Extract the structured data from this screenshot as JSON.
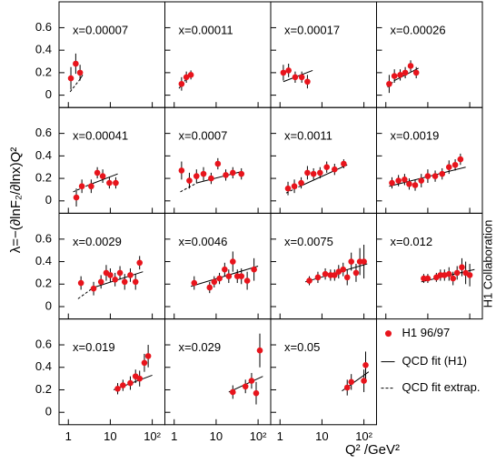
{
  "chart_data": {
    "type": "scatter",
    "y_label": "λ=−(∂lnF₂/∂lnx)Q²",
    "x_label": "Q² /GeV²",
    "side_label": "H1 Collaboration",
    "log_x": true,
    "xlim": [
      0.6,
      200
    ],
    "ylim": [
      -0.11,
      0.83
    ],
    "xticks": [
      1,
      10,
      {
        "value": 100,
        "label": "10²"
      }
    ],
    "yticks": [
      0,
      0.2,
      0.4,
      0.6
    ],
    "marker_color": "#e8141c",
    "legend": {
      "data": "H1 96/97",
      "fit": "QCD fit (H1)",
      "extrap": "QCD fit extrap."
    },
    "panels": [
      {
        "label": "x=0.00007",
        "x": [
          1.15,
          1.5,
          1.9
        ],
        "values": [
          0.15,
          0.28,
          0.2
        ],
        "errors": [
          0.1,
          0.09,
          0.07
        ],
        "extrap": {
          "x": [
            1.1,
            1.8
          ],
          "values": [
            0.03,
            0.13
          ]
        },
        "fit": {
          "x": [
            1.8,
            2.2
          ],
          "values": [
            0.13,
            0.18
          ]
        }
      },
      {
        "label": "x=0.00011",
        "x": [
          1.5,
          1.95,
          2.5
        ],
        "values": [
          0.1,
          0.16,
          0.18
        ],
        "errors": [
          0.06,
          0.05,
          0.04
        ],
        "extrap": {
          "x": [
            1.3,
            1.9
          ],
          "values": [
            0.06,
            0.14
          ]
        },
        "fit": {
          "x": [
            1.9,
            2.6
          ],
          "values": [
            0.14,
            0.2
          ]
        }
      },
      {
        "label": "x=0.00017",
        "x": [
          1.2,
          1.6,
          2.3,
          3.3,
          4.5
        ],
        "values": [
          0.2,
          0.22,
          0.16,
          0.16,
          0.12
        ],
        "errors": [
          0.07,
          0.06,
          0.05,
          0.05,
          0.06
        ],
        "fit": {
          "x": [
            1.2,
            6
          ],
          "values": [
            0.12,
            0.22
          ]
        }
      },
      {
        "label": "x=0.00026",
        "x": [
          1.2,
          1.6,
          2.2,
          2.9,
          3.9,
          5.3
        ],
        "values": [
          0.1,
          0.17,
          0.18,
          0.2,
          0.26,
          0.2
        ],
        "errors": [
          0.08,
          0.06,
          0.05,
          0.05,
          0.05,
          0.05
        ],
        "extrap": {
          "x": [
            1.1,
            1.6
          ],
          "values": [
            0.07,
            0.13
          ]
        },
        "fit": {
          "x": [
            1.6,
            6
          ],
          "values": [
            0.13,
            0.24
          ]
        }
      },
      {
        "label": "x=0.00041",
        "x": [
          1.55,
          2.1,
          3.5,
          4.9,
          6.6,
          9.5,
          13.5
        ],
        "values": [
          0.03,
          0.13,
          0.13,
          0.25,
          0.22,
          0.16,
          0.16
        ],
        "errors": [
          0.08,
          0.06,
          0.06,
          0.05,
          0.06,
          0.05,
          0.05
        ],
        "extrap": {
          "x": [
            1.3,
            3
          ],
          "values": [
            0.08,
            0.14
          ]
        },
        "fit": {
          "x": [
            3,
            15
          ],
          "values": [
            0.14,
            0.24
          ]
        }
      },
      {
        "label": "x=0.0007",
        "x": [
          1.5,
          2.3,
          3.4,
          5,
          7.6,
          11,
          17,
          25,
          40
        ],
        "values": [
          0.27,
          0.18,
          0.22,
          0.24,
          0.2,
          0.33,
          0.23,
          0.25,
          0.24
        ],
        "errors": [
          0.08,
          0.07,
          0.06,
          0.06,
          0.05,
          0.05,
          0.05,
          0.05,
          0.05
        ],
        "extrap": {
          "x": [
            1.4,
            3.5
          ],
          "values": [
            0.08,
            0.16
          ]
        },
        "fit": {
          "x": [
            3.5,
            40
          ],
          "values": [
            0.16,
            0.26
          ]
        }
      },
      {
        "label": "x=0.0011",
        "x": [
          1.55,
          2.2,
          3.2,
          4.5,
          6.3,
          9,
          13,
          20,
          33
        ],
        "values": [
          0.11,
          0.13,
          0.16,
          0.25,
          0.24,
          0.25,
          0.3,
          0.28,
          0.33
        ],
        "errors": [
          0.06,
          0.06,
          0.05,
          0.06,
          0.05,
          0.05,
          0.05,
          0.05,
          0.04
        ],
        "extrap": {
          "x": [
            1.4,
            3
          ],
          "values": [
            0.07,
            0.13
          ]
        },
        "fit": {
          "x": [
            3,
            40
          ],
          "values": [
            0.13,
            0.32
          ]
        }
      },
      {
        "label": "x=0.0019",
        "x": [
          1.4,
          2,
          2.8,
          3.6,
          5,
          7,
          10,
          15,
          22,
          32,
          45,
          60
        ],
        "values": [
          0.16,
          0.18,
          0.19,
          0.15,
          0.14,
          0.18,
          0.22,
          0.22,
          0.24,
          0.3,
          0.32,
          0.37
        ],
        "errors": [
          0.05,
          0.05,
          0.05,
          0.05,
          0.05,
          0.06,
          0.06,
          0.05,
          0.05,
          0.06,
          0.05,
          0.05
        ],
        "fit": {
          "x": [
            1.2,
            80
          ],
          "values": [
            0.13,
            0.3
          ]
        }
      },
      {
        "label": "x=0.0029",
        "x": [
          2,
          4,
          6,
          8,
          10,
          13,
          17,
          22,
          30,
          40,
          50
        ],
        "values": [
          0.21,
          0.16,
          0.22,
          0.3,
          0.28,
          0.24,
          0.3,
          0.22,
          0.28,
          0.22,
          0.39
        ],
        "errors": [
          0.06,
          0.06,
          0.06,
          0.07,
          0.06,
          0.06,
          0.06,
          0.07,
          0.06,
          0.07,
          0.06
        ],
        "extrap": {
          "x": [
            1.7,
            4
          ],
          "values": [
            0.07,
            0.17
          ]
        },
        "fit": {
          "x": [
            4,
            60
          ],
          "values": [
            0.17,
            0.31
          ]
        }
      },
      {
        "label": "x=0.0046",
        "x": [
          3,
          7,
          9,
          12,
          16,
          20,
          25,
          32,
          40,
          55,
          80
        ],
        "values": [
          0.21,
          0.17,
          0.22,
          0.25,
          0.33,
          0.27,
          0.4,
          0.27,
          0.27,
          0.23,
          0.33
        ],
        "errors": [
          0.06,
          0.05,
          0.05,
          0.05,
          0.06,
          0.06,
          0.09,
          0.06,
          0.07,
          0.08,
          0.1
        ],
        "fit": {
          "x": [
            2.5,
            100
          ],
          "values": [
            0.18,
            0.36
          ]
        }
      },
      {
        "label": "x=0.0075",
        "x": [
          5,
          8,
          12,
          16,
          20,
          25,
          32,
          40,
          50,
          65,
          80,
          100
        ],
        "values": [
          0.23,
          0.26,
          0.29,
          0.28,
          0.28,
          0.31,
          0.33,
          0.26,
          0.4,
          0.3,
          0.4,
          0.4
        ],
        "errors": [
          0.04,
          0.05,
          0.05,
          0.05,
          0.05,
          0.06,
          0.06,
          0.07,
          0.08,
          0.08,
          0.12,
          0.15
        ],
        "fit": {
          "x": [
            4,
            120
          ],
          "values": [
            0.22,
            0.38
          ]
        }
      },
      {
        "label": "x=0.012",
        "x": [
          8,
          10,
          16,
          20,
          25,
          32,
          40,
          50,
          65,
          80,
          100
        ],
        "values": [
          0.25,
          0.25,
          0.26,
          0.28,
          0.28,
          0.29,
          0.25,
          0.3,
          0.35,
          0.3,
          0.28
        ],
        "errors": [
          0.04,
          0.04,
          0.04,
          0.05,
          0.05,
          0.06,
          0.06,
          0.06,
          0.08,
          0.1,
          0.1
        ],
        "fit": {
          "x": [
            7,
            130
          ],
          "values": [
            0.22,
            0.33
          ]
        }
      },
      {
        "label": "x=0.019",
        "x": [
          15,
          20,
          30,
          40,
          50,
          65,
          80
        ],
        "values": [
          0.21,
          0.24,
          0.26,
          0.32,
          0.3,
          0.44,
          0.5
        ],
        "errors": [
          0.05,
          0.05,
          0.06,
          0.06,
          0.07,
          0.08,
          0.1
        ],
        "fit": {
          "x": [
            12,
            100
          ],
          "values": [
            0.2,
            0.33
          ]
        }
      },
      {
        "label": "x=0.029",
        "x": [
          25,
          50,
          70,
          90,
          110
        ],
        "values": [
          0.18,
          0.23,
          0.28,
          0.17,
          0.55
        ],
        "errors": [
          0.06,
          0.06,
          0.07,
          0.1,
          0.15
        ],
        "fit": {
          "x": [
            20,
            130
          ],
          "values": [
            0.18,
            0.32
          ]
        }
      },
      {
        "label": "x=0.05",
        "x": [
          40,
          50,
          100,
          110
        ],
        "values": [
          0.22,
          0.27,
          0.28,
          0.42
        ],
        "errors": [
          0.07,
          0.07,
          0.1,
          0.12
        ],
        "fit": {
          "x": [
            30,
            130
          ],
          "values": [
            0.19,
            0.36
          ]
        }
      }
    ]
  }
}
